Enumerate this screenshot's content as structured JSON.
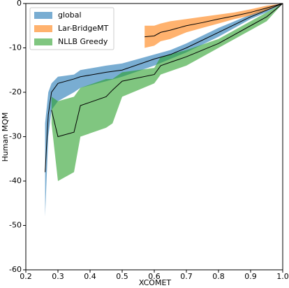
{
  "chart_data": {
    "type": "line-band",
    "x_label": "XCOMET",
    "y_label": "Human MQM",
    "xlim": [
      0.2,
      1.0
    ],
    "ylim": [
      -60,
      0
    ],
    "xticks": [
      0.2,
      0.3,
      0.4,
      0.5,
      0.6,
      0.7,
      0.8,
      0.9,
      {
        "value": 1,
        "label": "1.0"
      }
    ],
    "yticks": [
      0,
      -10,
      -20,
      -30,
      -40,
      -50,
      -60
    ],
    "legend": "upper left",
    "series": [
      {
        "name": "global",
        "color": "#1f77b4",
        "x": [
          0.26,
          0.27,
          0.28,
          0.3,
          0.35,
          0.37,
          0.45,
          0.5,
          0.6,
          0.65,
          0.7,
          0.8,
          0.9,
          0.95,
          1.0
        ],
        "values": [
          -38,
          -25,
          -20,
          -18,
          -17,
          -16.5,
          -15.5,
          -15,
          -12.5,
          -11.5,
          -10,
          -6.5,
          -3,
          -1.5,
          0
        ],
        "upper": [
          -27,
          -20,
          -18,
          -16.5,
          -16,
          -15,
          -14,
          -13.5,
          -11.5,
          -10.5,
          -9,
          -5.5,
          -2.5,
          -1,
          0
        ],
        "lower": [
          -48,
          -30,
          -24,
          -22,
          -20,
          -19,
          -17.5,
          -16.5,
          -14,
          -12.5,
          -11,
          -7.5,
          -3.5,
          -2,
          0
        ]
      },
      {
        "name": "Lar-BridgeMT",
        "color": "#ff7f0e",
        "x": [
          0.57,
          0.6,
          0.62,
          0.65,
          0.7,
          0.75,
          0.8,
          0.85,
          0.9,
          0.95,
          1.0
        ],
        "values": [
          -7.5,
          -7.3,
          -6.5,
          -6,
          -5,
          -4.3,
          -3.5,
          -2.8,
          -2,
          -1,
          0
        ],
        "upper": [
          -5,
          -5,
          -4.5,
          -4,
          -3.5,
          -3,
          -2.5,
          -2,
          -1.3,
          -0.5,
          0
        ],
        "lower": [
          -10,
          -9.5,
          -8.5,
          -8,
          -6.5,
          -5.5,
          -4.5,
          -3.5,
          -2.7,
          -1.5,
          0
        ]
      },
      {
        "name": "NLLB Greedy",
        "color": "#2ca02c",
        "x": [
          0.28,
          0.3,
          0.35,
          0.37,
          0.45,
          0.47,
          0.5,
          0.6,
          0.62,
          0.7,
          0.8,
          0.9,
          0.95,
          1.0
        ],
        "values": [
          -24,
          -30,
          -29,
          -23,
          -21,
          -19.5,
          -17.5,
          -16,
          -14,
          -12,
          -9,
          -5,
          -3,
          0
        ],
        "upper": [
          -21,
          -22,
          -21,
          -19,
          -17,
          -17,
          -15.5,
          -14.5,
          -12,
          -10.5,
          -8,
          -4,
          -2,
          0
        ],
        "lower": [
          -27,
          -40,
          -38,
          -30,
          -28,
          -27,
          -21,
          -18,
          -16,
          -14,
          -10,
          -6,
          -4,
          0
        ]
      }
    ]
  }
}
